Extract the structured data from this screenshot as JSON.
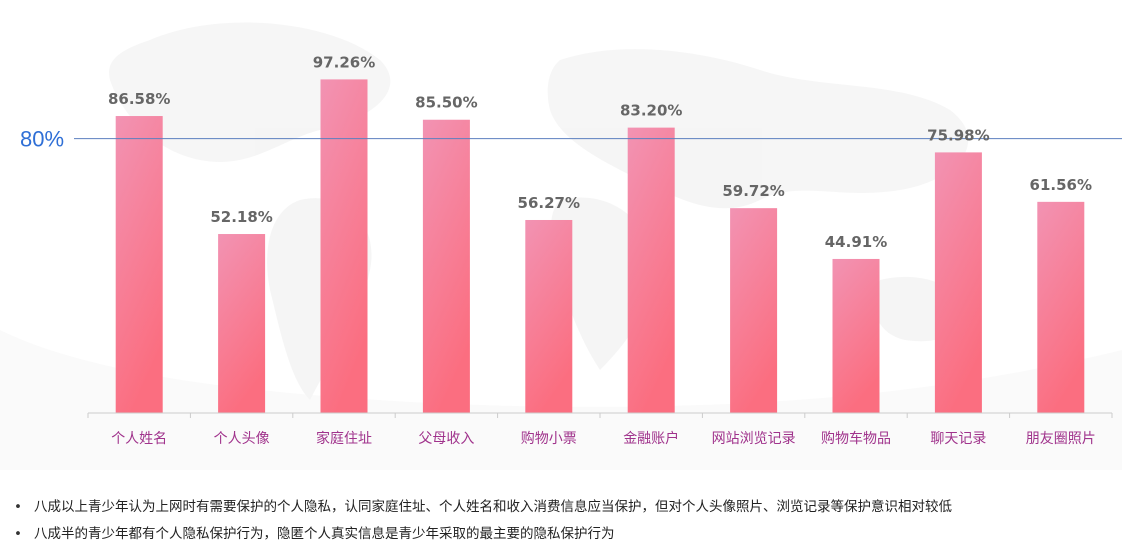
{
  "chart_data": {
    "type": "bar",
    "categories": [
      "个人姓名",
      "个人头像",
      "家庭住址",
      "父母收入",
      "购物小票",
      "金融账户",
      "网站浏览记录",
      "购物车物品",
      "聊天记录",
      "朋友圈照片"
    ],
    "values": [
      86.58,
      52.18,
      97.26,
      85.5,
      56.27,
      83.2,
      59.72,
      44.91,
      75.98,
      61.56
    ],
    "value_labels": [
      "86.58%",
      "52.18%",
      "97.26%",
      "85.50%",
      "56.27%",
      "83.20%",
      "59.72%",
      "44.91%",
      "75.98%",
      "61.56%"
    ],
    "ylim": [
      0,
      100
    ],
    "reference_line": {
      "value": 80,
      "label": "80%"
    },
    "grid": false,
    "colors": {
      "bar_top": "#f293b3",
      "bar_bottom": "#fb6e80",
      "category_label": "#a0338c",
      "value_label": "#666666",
      "reference_line": "#5b7fbf",
      "reference_label": "#2f6fd6",
      "axis": "#cccccc"
    }
  },
  "notes": [
    "八成以上青少年认为上网时有需要保护的个人隐私，认同家庭住址、个人姓名和收入消费信息应当保护，但对个人头像照片、浏览记录等保护意识相对较低",
    "八成半的青少年都有个人隐私保护行为，隐匿个人真实信息是青少年采取的最主要的隐私保护行为"
  ],
  "bullet": "•"
}
